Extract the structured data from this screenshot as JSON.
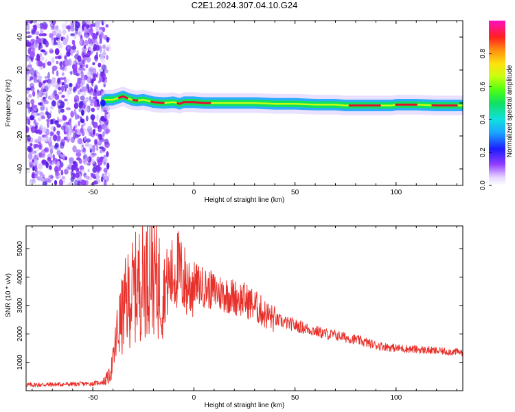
{
  "title": "C2E1.2024.307.04.10.G24",
  "colors": {
    "snr_line": "#e8302a",
    "noise_purple": "#7a2af0",
    "ridge_red": "#e01030"
  },
  "chart_data": [
    {
      "type": "heatmap",
      "xlabel": "Height of straight line (km)",
      "ylabel": "Frequency (Hz)",
      "xlim": [
        -83,
        133
      ],
      "ylim": [
        -50,
        50
      ],
      "x_ticks": [
        -50,
        0,
        50,
        100
      ],
      "y_ticks": [
        -40,
        -20,
        0,
        20,
        40
      ],
      "x_tick_labels": [
        "-50",
        "0",
        "50",
        "100"
      ],
      "y_tick_labels": [
        "-40",
        "-20",
        "0",
        "20",
        "40"
      ],
      "colorbar": {
        "label": "Normalized spectral amplitude",
        "range": [
          0.0,
          1.0
        ],
        "ticks": [
          0.0,
          0.2,
          0.4,
          0.6,
          0.8
        ],
        "tick_labels": [
          "0.0",
          "0.2",
          "0.4",
          "0.6",
          "0.8"
        ]
      },
      "ridge": {
        "x": [
          -46,
          -44,
          -40,
          -35,
          -31,
          -28,
          -25,
          -20,
          -15,
          -10,
          -7,
          -5,
          0,
          5,
          10,
          20,
          30,
          40,
          50,
          60,
          70,
          75,
          80,
          90,
          98,
          100,
          110,
          120,
          133
        ],
        "freq": [
          0,
          2,
          2,
          4,
          2,
          1.5,
          2,
          0.5,
          0,
          0.5,
          -0.5,
          0.5,
          0.5,
          0,
          0,
          0,
          0,
          -0.5,
          -0.5,
          -1,
          -1,
          -1.5,
          -1.5,
          -1.5,
          -1.5,
          -1,
          -1,
          -1.5,
          -1.5
        ]
      },
      "noise_region_x": [
        -83,
        -42
      ]
    },
    {
      "type": "line",
      "xlabel": "Height of straight line (km)",
      "ylabel": "SNR (10 * v/v)",
      "xlim": [
        -83,
        133
      ],
      "ylim": [
        0,
        5800
      ],
      "x_ticks": [
        -50,
        0,
        50,
        100
      ],
      "y_ticks": [
        1000,
        2000,
        3000,
        4000,
        5000
      ],
      "x_tick_labels": [
        "-50",
        "0",
        "50",
        "100"
      ],
      "y_tick_labels": [
        "1000",
        "2000",
        "3000",
        "4000",
        "5000"
      ],
      "series": [
        {
          "x": [
            -83,
            -70,
            -60,
            -50,
            -45,
            -42,
            -40,
            -38,
            -36,
            -34,
            -32,
            -30,
            -28,
            -26,
            -24,
            -22,
            -20,
            -18,
            -16,
            -14,
            -12,
            -10,
            -8,
            -6,
            -4,
            -2,
            0,
            3,
            6,
            10,
            15,
            20,
            25,
            30,
            35,
            40,
            45,
            50,
            55,
            60,
            65,
            70,
            80,
            90,
            100,
            110,
            120,
            133
          ],
          "y": [
            200,
            220,
            230,
            250,
            300,
            500,
            1000,
            2000,
            2500,
            3000,
            3300,
            3500,
            3700,
            3900,
            4100,
            4400,
            4300,
            3800,
            3600,
            3700,
            3900,
            4100,
            4300,
            4000,
            3800,
            3700,
            3800,
            3700,
            3600,
            3500,
            3400,
            3300,
            3200,
            3000,
            2700,
            2500,
            2400,
            2300,
            2200,
            2100,
            2000,
            1950,
            1800,
            1600,
            1500,
            1450,
            1400,
            1350
          ]
        }
      ]
    }
  ]
}
